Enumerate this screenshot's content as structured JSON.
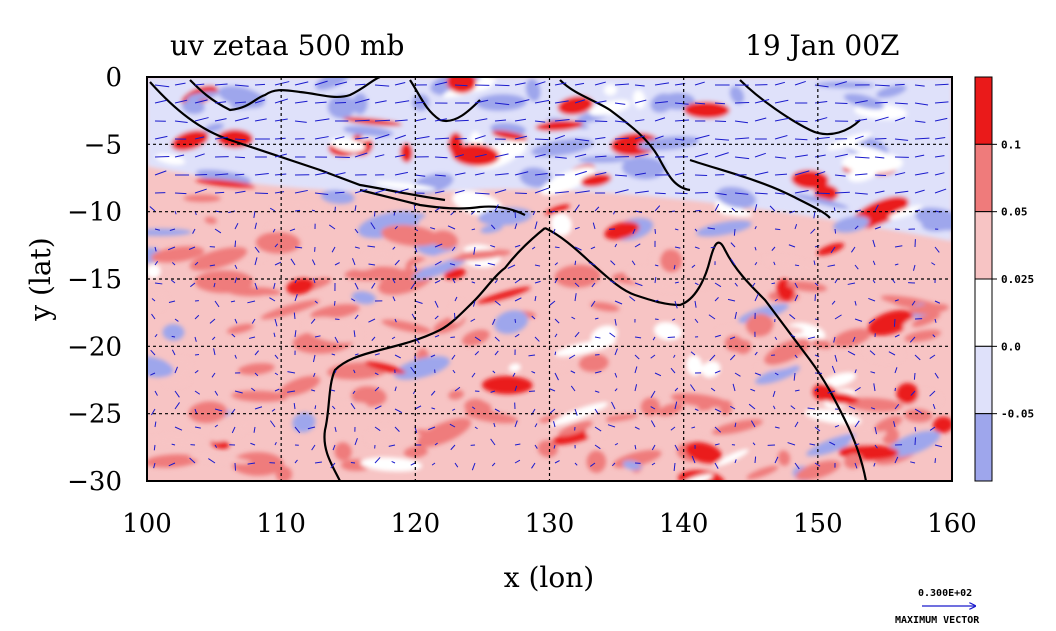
{
  "chart_data": {
    "type": "heatmap",
    "title_left": "uv zetaa 500 mb",
    "title_right": "19 Jan 00Z",
    "xlabel": "x (lon)",
    "ylabel": "y (lat)",
    "xlim": [
      100,
      160
    ],
    "ylim": [
      -30,
      0
    ],
    "x_ticks": [
      "100",
      "110",
      "120",
      "130",
      "140",
      "150",
      "160"
    ],
    "y_ticks": [
      "0",
      "−5",
      "−10",
      "−15",
      "−20",
      "−25",
      "−30"
    ],
    "x_tick_values": [
      100,
      110,
      120,
      130,
      140,
      150,
      160
    ],
    "y_tick_values": [
      0,
      -5,
      -10,
      -15,
      -20,
      -25,
      -30
    ],
    "grid": true,
    "colorbar": {
      "levels": [
        -0.05,
        0.0,
        0.025,
        0.05,
        0.1
      ],
      "labels": [
        "-0.05",
        "0.0",
        "0.025",
        "0.05",
        "0.1"
      ],
      "colors": [
        "#9ea6ec",
        "#dfe1fa",
        "#ffffff",
        "#f7c4c4",
        "#ef7b7b",
        "#ea1a1a"
      ]
    },
    "vector_reference": {
      "value": "0.300E+02",
      "label": "MAXIMUM VECTOR"
    },
    "regions": [
      {
        "name": "north-band",
        "lon": [
          100,
          160
        ],
        "lat": [
          -7,
          0
        ],
        "value_class": "negative"
      },
      {
        "name": "south-band",
        "lon": [
          100,
          160
        ],
        "lat": [
          -30,
          -7
        ],
        "value_class": "positive"
      }
    ]
  },
  "colors": {
    "frame": "#000000",
    "vector": "#1a1acc",
    "coast": "#000000"
  }
}
